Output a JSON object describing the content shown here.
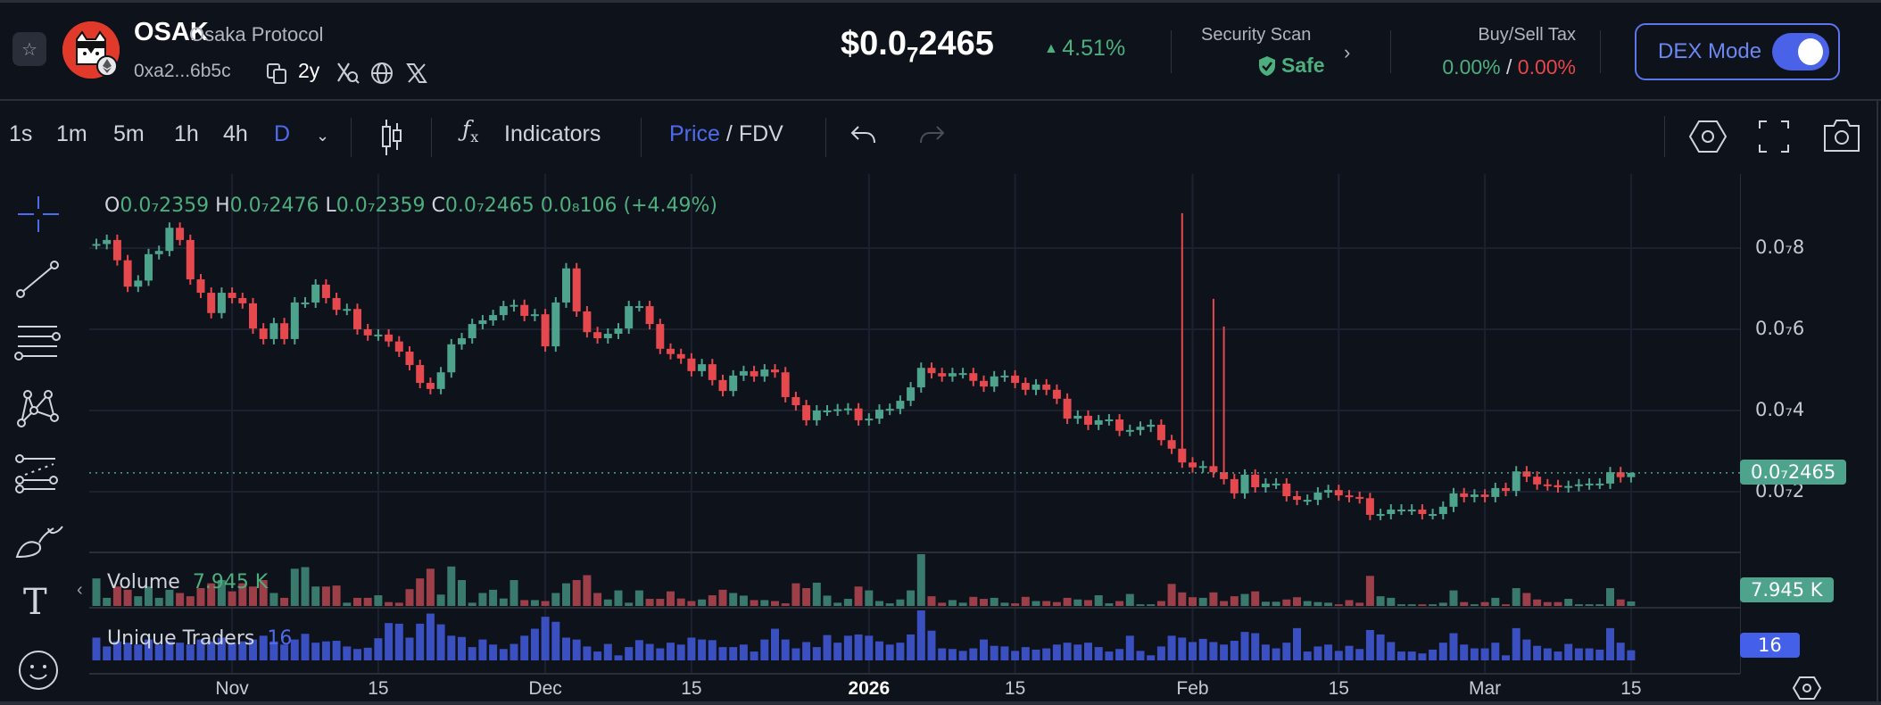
{
  "token": {
    "symbol": "OSAK",
    "name": "Osaka Protocol",
    "address": "0xa2...6b5c",
    "age": "2y",
    "chain_icon": "ethereum-icon"
  },
  "price": {
    "prefix": "$0.0",
    "zeros_sub": "7",
    "digits": "2465",
    "change": "4.51%",
    "change_color": "#4caf7d"
  },
  "security": {
    "label": "Security Scan",
    "status": "Safe"
  },
  "tax": {
    "label": "Buy/Sell Tax",
    "buy": "0.00%",
    "sep": "/",
    "sell": "0.00%"
  },
  "dex_mode": {
    "label": "DEX Mode",
    "enabled": true,
    "accent": "#5d74ea"
  },
  "toolbar": {
    "intervals": [
      "1s",
      "1m",
      "5m",
      "1h",
      "4h",
      "D"
    ],
    "active_interval": "D",
    "indicators_label": "Indicators",
    "price_label": "Price",
    "slash": "/",
    "fdv_label": "FDV"
  },
  "legend": {
    "o_label": "O",
    "o": "0.0₇2359",
    "h_label": "H",
    "h": "0.0₇2476",
    "l_label": "L",
    "l": "0.0₇2359",
    "c_label": "C",
    "c": "0.0₇2465",
    "change": "0.0₈106 (+4.49%)",
    "volume_label": "Volume",
    "volume_value": "7.945 K",
    "traders_label": "Unique Traders",
    "traders_value": "16"
  },
  "axis": {
    "last_price_tag": "0.0₇2465",
    "volume_tag": "7.945 K",
    "traders_tag": "16"
  },
  "chart_data": {
    "type": "candlestick",
    "x_range": [
      "2025-10-19",
      "2026-03-15"
    ],
    "interval": "1D",
    "up_color": "#4ea38d",
    "down_color": "#e5484d",
    "traders_color": "#3a4fc0",
    "grid": true,
    "y_ticks": [
      {
        "label": "0.0₇8",
        "value": 8e-08
      },
      {
        "label": "0.0₇6",
        "value": 6e-08
      },
      {
        "label": "0.0₇4",
        "value": 4e-08
      },
      {
        "label": "0.0₇2",
        "value": 2e-08
      }
    ],
    "x_ticks": [
      {
        "label": "Nov",
        "date": "2025-11-01"
      },
      {
        "label": "15",
        "date": "2025-11-15"
      },
      {
        "label": "Dec",
        "date": "2025-12-01"
      },
      {
        "label": "15",
        "date": "2025-12-15"
      },
      {
        "label": "2026",
        "date": "2026-01-01"
      },
      {
        "label": "15",
        "date": "2026-01-15"
      },
      {
        "label": "Feb",
        "date": "2026-02-01"
      },
      {
        "label": "15",
        "date": "2026-02-15"
      },
      {
        "label": "Mar",
        "date": "2026-03-01"
      },
      {
        "label": "15",
        "date": "2026-03-15"
      }
    ],
    "last_price": 2.465e-08,
    "close": [
      8.1e-08,
      8.2e-08,
      7.7e-08,
      7.05e-08,
      7.2e-08,
      7.85e-08,
      7.93e-08,
      8.5e-08,
      8.2e-08,
      7.23e-08,
      6.9e-08,
      6.4e-08,
      6.9e-08,
      6.77e-08,
      6.64e-08,
      6.02e-08,
      5.76e-08,
      6.15e-08,
      5.76e-08,
      6.66e-08,
      6.66e-08,
      7.1e-08,
      6.77e-08,
      6.48e-08,
      6.5e-08,
      6e-08,
      5.85e-08,
      5.87e-08,
      5.7e-08,
      5.45e-08,
      5.12e-08,
      4.68e-08,
      4.53e-08,
      4.94e-08,
      5.63e-08,
      5.78e-08,
      6.13e-08,
      6.22e-08,
      6.35e-08,
      6.57e-08,
      6.6e-08,
      6.33e-08,
      6.37e-08,
      5.58e-08,
      6.66e-08,
      7.5e-08,
      6.44e-08,
      5.93e-08,
      5.78e-08,
      5.89e-08,
      6.02e-08,
      6.57e-08,
      6.57e-08,
      6.13e-08,
      5.52e-08,
      5.39e-08,
      5.28e-08,
      4.97e-08,
      5.14e-08,
      4.75e-08,
      4.48e-08,
      4.86e-08,
      4.97e-08,
      4.84e-08,
      5.01e-08,
      4.94e-08,
      4.33e-08,
      4.13e-08,
      3.76e-08,
      4e-08,
      4e-08,
      4.03e-08,
      4.05e-08,
      3.76e-08,
      3.8e-08,
      4.02e-08,
      4.04e-08,
      4.24e-08,
      4.57e-08,
      5.05e-08,
      4.92e-08,
      4.84e-08,
      4.92e-08,
      4.92e-08,
      4.73e-08,
      4.59e-08,
      4.84e-08,
      4.86e-08,
      4.68e-08,
      4.51e-08,
      4.64e-08,
      4.51e-08,
      4.29e-08,
      3.8e-08,
      3.87e-08,
      3.65e-08,
      3.76e-08,
      3.78e-08,
      3.5e-08,
      3.52e-08,
      3.6e-08,
      3.65e-08,
      3.27e-08,
      3.06e-08,
      2.72e-08,
      2.6e-08,
      2.63e-08,
      2.48e-08,
      2.31e-08,
      1.96e-08,
      2.42e-08,
      2.11e-08,
      2.2e-08,
      2.2e-08,
      1.89e-08,
      1.8e-08,
      1.8e-08,
      1.98e-08,
      2.04e-08,
      1.91e-08,
      1.87e-08,
      1.84e-08,
      1.43e-08,
      1.45e-08,
      1.56e-08,
      1.56e-08,
      1.56e-08,
      1.45e-08,
      1.45e-08,
      1.63e-08,
      1.96e-08,
      1.87e-08,
      1.93e-08,
      1.87e-08,
      2.09e-08,
      2.02e-08,
      2.5e-08,
      2.37e-08,
      2.18e-08,
      2.16e-08,
      2.11e-08,
      2.14e-08,
      2.18e-08,
      2.2e-08,
      2.2e-08,
      2.48e-08,
      2.359e-08,
      2.465e-08
    ],
    "wick_highs": [
      {
        "date": "2026-01-31",
        "high": 8.86e-08
      },
      {
        "date": "2026-02-03",
        "high": 6.75e-08
      },
      {
        "date": "2026-02-04",
        "high": 6.07e-08
      },
      {
        "date": "2026-03-15",
        "high": 2.476e-08
      }
    ],
    "volume_k": [
      48.5,
      14.3,
      34.2,
      28.5,
      17.1,
      34.2,
      14.3,
      28.5,
      22.8,
      17.1,
      31.4,
      39.9,
      45.6,
      25.7,
      39.9,
      34.2,
      45.6,
      22.8,
      14.3,
      65.6,
      68.4,
      34.2,
      34.2,
      35.9,
      5.7,
      14.3,
      14.3,
      18.8,
      6.8,
      5.7,
      29.6,
      48.5,
      65.6,
      20,
      69.5,
      45.6,
      5.7,
      22.8,
      28.5,
      13.1,
      45.6,
      10.3,
      10.3,
      8.6,
      22.8,
      39.9,
      45.6,
      54.2,
      22.8,
      11.4,
      27.4,
      5.7,
      27.4,
      12.5,
      12.5,
      25.7,
      13.1,
      8.6,
      11.4,
      18.8,
      28.5,
      22.8,
      18.2,
      10.3,
      10.3,
      8.6,
      4.6,
      39.9,
      31.4,
      41,
      18.2,
      5.7,
      12.5,
      34.2,
      27.4,
      8.6,
      4.6,
      11.4,
      27.4,
      91.2,
      17.1,
      5.7,
      10.3,
      5.7,
      16,
      12.5,
      14.3,
      5.7,
      4.6,
      16,
      8.6,
      8.6,
      6.8,
      14.3,
      11.4,
      10.3,
      18.8,
      4.6,
      8.6,
      21.1,
      2.9,
      2.9,
      8.6,
      38.8,
      23.9,
      15.4,
      14.3,
      23.9,
      8.6,
      17.1,
      21.1,
      25.7,
      7.4,
      7.4,
      11.4,
      15.4,
      8.6,
      6.8,
      5.7,
      2.9,
      10.3,
      5.7,
      53,
      17.1,
      14.3,
      2.9,
      2.9,
      2.9,
      2.9,
      5.7,
      27.4,
      6.8,
      2.9,
      6.8,
      14.3,
      2.9,
      31.4,
      22.8,
      11.4,
      6.8,
      6.8,
      12.5,
      2.9,
      2.9,
      2.9,
      31.4,
      11.4,
      7.945
    ],
    "unique_traders": [
      36,
      22,
      30,
      28,
      25,
      33,
      25,
      30,
      28,
      25,
      33,
      30,
      36,
      28,
      30,
      33,
      39,
      30,
      25,
      33,
      42,
      28,
      30,
      31,
      22,
      18,
      20,
      35,
      59,
      58,
      36,
      58,
      74,
      57,
      39,
      37,
      21,
      33,
      25,
      18,
      26,
      39,
      50,
      69,
      61,
      36,
      33,
      22,
      14,
      26,
      8,
      21,
      32,
      26,
      19,
      28,
      25,
      36,
      33,
      32,
      21,
      21,
      25,
      14,
      33,
      50,
      33,
      19,
      29,
      21,
      40,
      28,
      39,
      41,
      39,
      30,
      25,
      28,
      41,
      79,
      47,
      19,
      18,
      15,
      19,
      33,
      23,
      22,
      15,
      21,
      17,
      19,
      25,
      28,
      25,
      28,
      21,
      14,
      18,
      39,
      15,
      8,
      22,
      39,
      36,
      29,
      34,
      29,
      25,
      31,
      45,
      43,
      25,
      19,
      28,
      51,
      14,
      22,
      25,
      15,
      23,
      18,
      48,
      41,
      29,
      14,
      14,
      11,
      17,
      28,
      43,
      25,
      19,
      19,
      28,
      8,
      51,
      33,
      23,
      19,
      14,
      26,
      19,
      19,
      17,
      51,
      28,
      16
    ]
  }
}
